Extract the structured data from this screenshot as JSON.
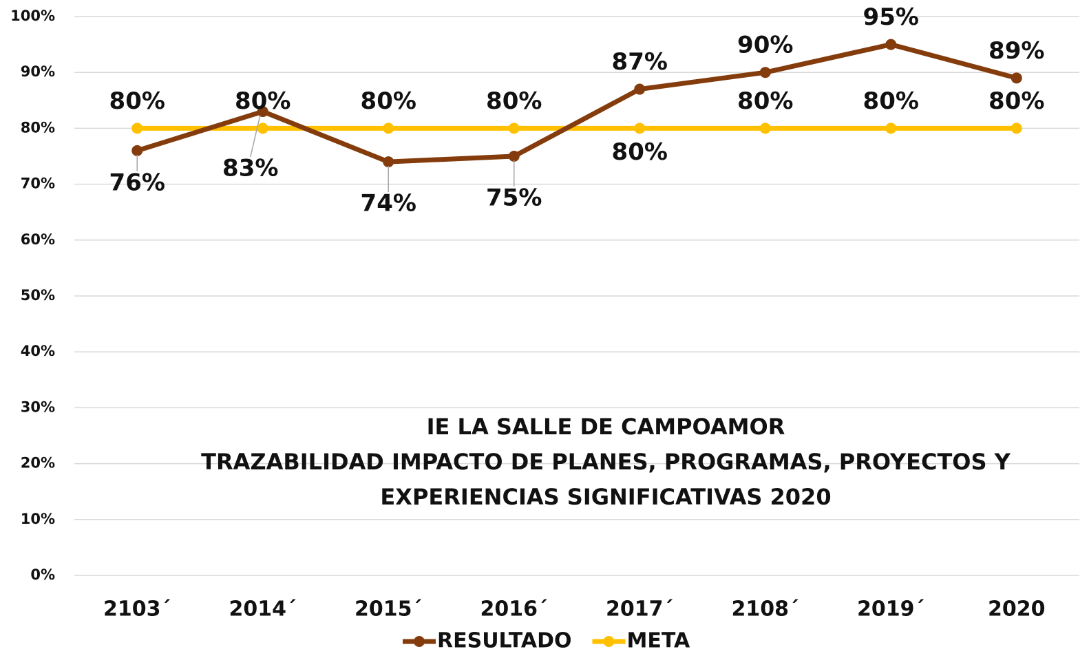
{
  "chart_data": {
    "type": "line",
    "title": [
      "IE LA SALLE DE CAMPOAMOR",
      "TRAZABILIDAD IMPACTO DE PLANES, PROGRAMAS, PROYECTOS Y",
      "EXPERIENCIAS SIGNIFICATIVAS 2020"
    ],
    "categories": [
      "2103´",
      "2014´",
      "2015´",
      "2016´",
      "2017´",
      "2108´",
      "2019´",
      "2020"
    ],
    "series": [
      {
        "name": "RESULTADO",
        "color": "#843c0c",
        "values": [
          76,
          83,
          74,
          75,
          87,
          90,
          95,
          89
        ],
        "value_labels": [
          "76%",
          "83%",
          "74%",
          "75%",
          "87%",
          "90%",
          "95%",
          "89%"
        ]
      },
      {
        "name": "META",
        "color": "#ffc000",
        "values": [
          80,
          80,
          80,
          80,
          80,
          80,
          80,
          80
        ],
        "value_labels": [
          "80%",
          "80%",
          "80%",
          "80%",
          "80%",
          "80%",
          "80%",
          "80%"
        ]
      }
    ],
    "ylim": [
      0,
      100
    ],
    "yticks": [
      {
        "value": 0,
        "label": "0%"
      },
      {
        "value": 10,
        "label": "10%"
      },
      {
        "value": 20,
        "label": "20%"
      },
      {
        "value": 30,
        "label": "30%"
      },
      {
        "value": 40,
        "label": "40%"
      },
      {
        "value": 50,
        "label": "50%"
      },
      {
        "value": 60,
        "label": "60%"
      },
      {
        "value": 70,
        "label": "70%"
      },
      {
        "value": 80,
        "label": "80%"
      },
      {
        "value": 90,
        "label": "90%"
      },
      {
        "value": 100,
        "label": "100%"
      }
    ],
    "grid": true,
    "legend": "bottom"
  }
}
